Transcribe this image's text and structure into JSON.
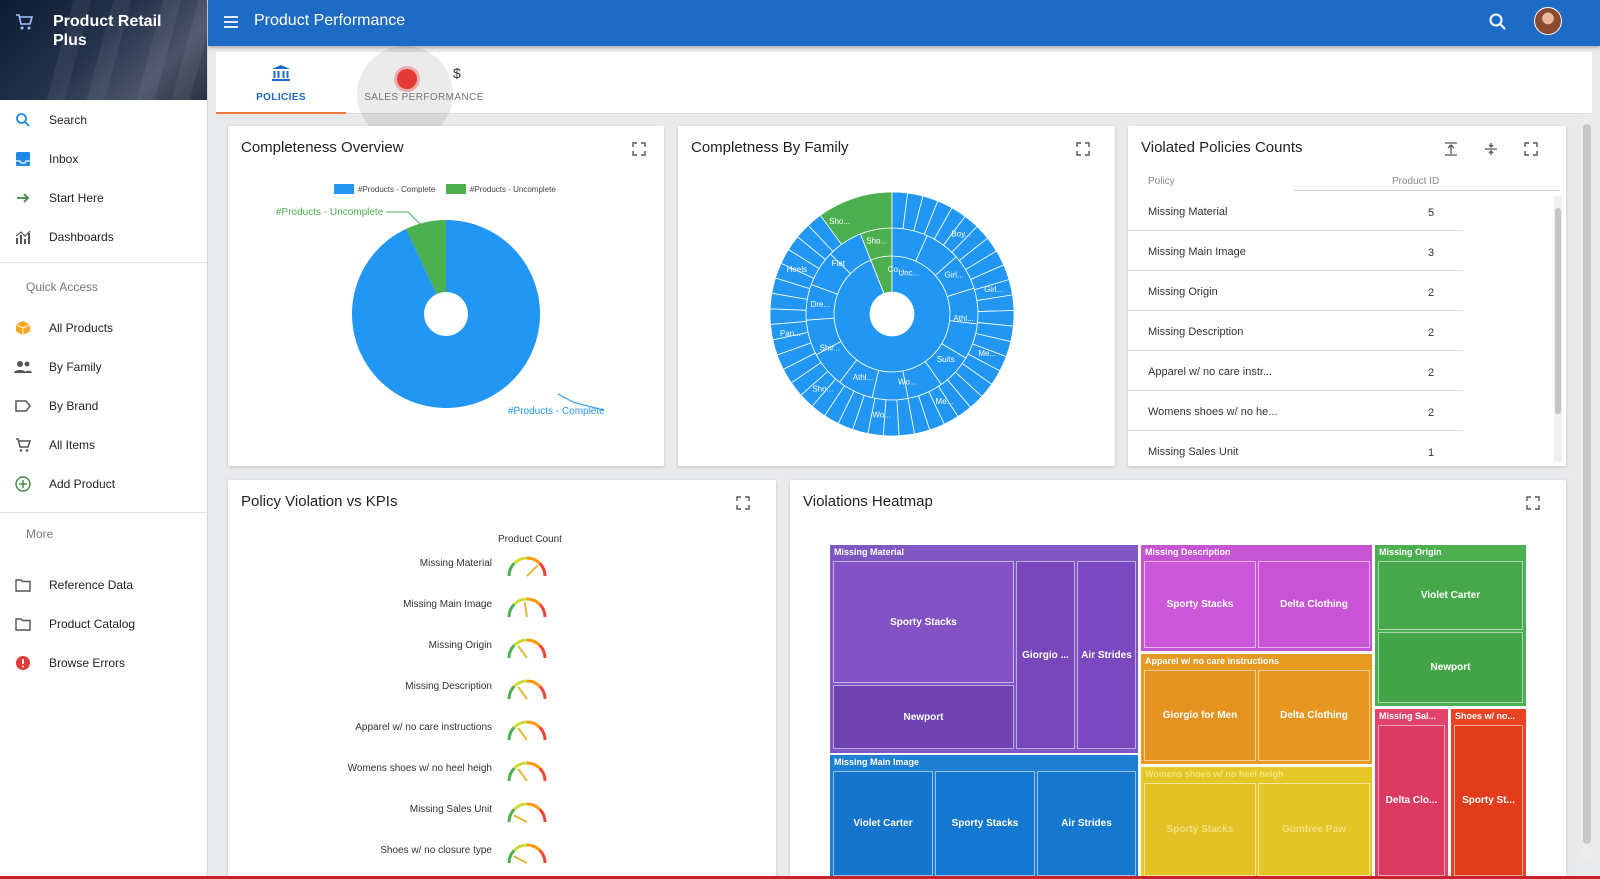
{
  "app": {
    "title": "Product Retail Plus",
    "page_title": "Product Performance"
  },
  "sidebar": {
    "items_top": [
      {
        "label": "Search",
        "icon": "search-icon"
      },
      {
        "label": "Inbox",
        "icon": "inbox-icon"
      },
      {
        "label": "Start Here",
        "icon": "arrow-right-icon"
      },
      {
        "label": "Dashboards",
        "icon": "chart-icon"
      }
    ],
    "quick_access_label": "Quick Access",
    "items_quick": [
      {
        "label": "All Products",
        "icon": "box-icon"
      },
      {
        "label": "By Family",
        "icon": "people-icon"
      },
      {
        "label": "By Brand",
        "icon": "tag-icon"
      },
      {
        "label": "All Items",
        "icon": "cart-icon"
      },
      {
        "label": "Add Product",
        "icon": "plus-circle-icon"
      }
    ],
    "more_label": "More",
    "items_more": [
      {
        "label": "Reference Data",
        "icon": "folder-icon"
      },
      {
        "label": "Product Catalog",
        "icon": "folder-icon"
      },
      {
        "label": "Browse Errors",
        "icon": "error-icon"
      }
    ]
  },
  "tabs": [
    {
      "label": "POLICIES",
      "icon": "bank-icon",
      "active": true
    },
    {
      "label": "SALES PERFORMANCE",
      "icon": "dollar-icon",
      "active": false
    }
  ],
  "completeness_overview": {
    "title": "Completeness Overview",
    "chart_data": {
      "type": "pie",
      "labels": [
        "#Products - Complete",
        "#Products - Uncomplete"
      ],
      "values": [
        93,
        7
      ],
      "colors": [
        "#2196f3",
        "#4caf50"
      ],
      "legend_position": "top"
    }
  },
  "completeness_by_family": {
    "title": "Completness By Family",
    "chart_type": "sunburst",
    "visible_labels": [
      "Co...",
      "Unc...",
      "Boy...",
      "Girl...",
      "Girl...",
      "Athl...",
      "Me...",
      "Suits",
      "Me...",
      "Wo...",
      "Wo...",
      "Athl...",
      "Sho...",
      "Shir...",
      "Pan...",
      "Dre...",
      "Heels",
      "Flat",
      "Sho...",
      "Sho..."
    ]
  },
  "violated_policies": {
    "title": "Violated Policies Counts",
    "col_policy": "Policy",
    "col_count": "Product ID",
    "rows": [
      {
        "policy": "Missing Material",
        "count": "5"
      },
      {
        "policy": "Missing Main Image",
        "count": "3"
      },
      {
        "policy": "Missing Origin",
        "count": "2"
      },
      {
        "policy": "Missing Description",
        "count": "2"
      },
      {
        "policy": "Apparel w/ no care instr...",
        "count": "2"
      },
      {
        "policy": "Womens shoes w/ no he...",
        "count": "2"
      },
      {
        "policy": "Missing Sales Unit",
        "count": "1"
      }
    ]
  },
  "kpis": {
    "title": "Policy Violation vs KPIs",
    "column_header": "Product Count",
    "rows": [
      {
        "label": "Missing Material",
        "level": 0.75
      },
      {
        "label": "Missing Main Image",
        "level": 0.45
      },
      {
        "label": "Missing Origin",
        "level": 0.3
      },
      {
        "label": "Missing Description",
        "level": 0.3
      },
      {
        "label": "Apparel w/ no care instructions",
        "level": 0.3
      },
      {
        "label": "Womens shoes w/ no heel heigh",
        "level": 0.3
      },
      {
        "label": "Missing Sales Unit",
        "level": 0.15
      },
      {
        "label": "Shoes w/ no closure type",
        "level": 0.15
      }
    ]
  },
  "heatmap": {
    "title": "Violations Heatmap",
    "groups": {
      "missing_material": {
        "label": "Missing Material",
        "tiles": [
          "Sporty Stacks",
          "Newport",
          "Giorgio ...",
          "Air Strides"
        ]
      },
      "missing_main_image": {
        "label": "Missing Main Image",
        "tiles": [
          "Violet Carter",
          "Sporty Stacks",
          "Air Strides"
        ]
      },
      "missing_description": {
        "label": "Missing Description",
        "tiles": [
          "Sporty Stacks",
          "Delta Clothing"
        ]
      },
      "apparel": {
        "label": "Apparel w/ no care instructions",
        "tiles": [
          "Giorgio for Men",
          "Delta Clothing"
        ]
      },
      "womens_shoes": {
        "label": "Womens shoes w/ no heel heigh",
        "tiles": [
          "Sporty Stacks",
          "Gumtree Paw"
        ]
      },
      "missing_origin": {
        "label": "Missing Origin",
        "tiles": [
          "Violet Carter",
          "Newport"
        ]
      },
      "missing_sales": {
        "label": "Missing Sal...",
        "tiles": [
          "Delta Clo..."
        ]
      },
      "shoes_no": {
        "label": "Shoes w/ no...",
        "tiles": [
          "Sporty St..."
        ]
      }
    }
  }
}
